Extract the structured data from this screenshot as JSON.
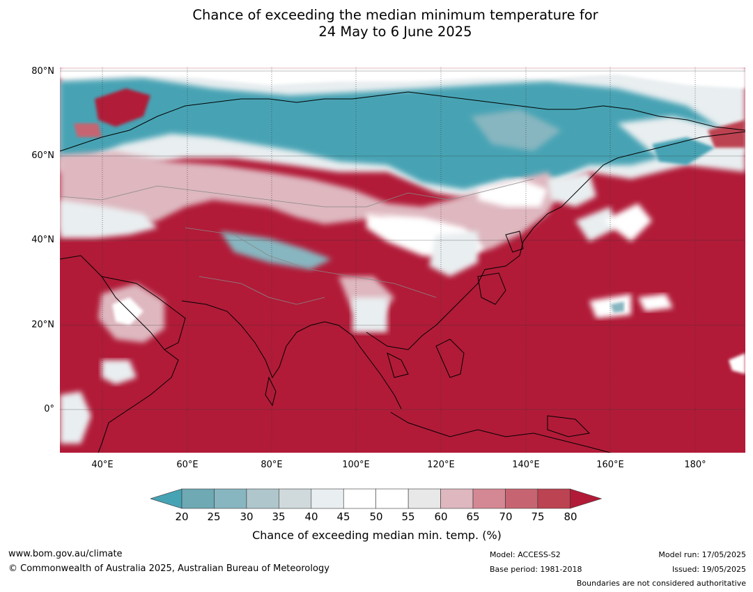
{
  "title": {
    "line1": "Chance of exceeding the median minimum temperature for",
    "line2": "24 May to 6 June 2025"
  },
  "map": {
    "latitude_labels": [
      "80°N",
      "60°N",
      "40°N",
      "20°N",
      "0°"
    ],
    "longitude_labels": [
      "40°E",
      "60°E",
      "80°E",
      "100°E",
      "120°E",
      "140°E",
      "160°E",
      "180°"
    ],
    "colors": {
      "ocean_high": "#b11b38",
      "low_band": "#46a3b4",
      "mid_white": "#ffffff"
    }
  },
  "colorbar": {
    "ticks": [
      "20",
      "25",
      "30",
      "35",
      "40",
      "45",
      "50",
      "55",
      "60",
      "65",
      "70",
      "75",
      "80"
    ],
    "colors": [
      "#46a3b4",
      "#6ea9b4",
      "#87b6c0",
      "#aec6cc",
      "#d0d9dc",
      "#e9eef0",
      "#ffffff",
      "#ffffff",
      "#e8e8e8",
      "#deb7bf",
      "#d48893",
      "#c66571",
      "#bc4351",
      "#b11b38"
    ],
    "title": "Chance of exceeding median min. temp. (%)"
  },
  "footer": {
    "website": "www.bom.gov.au/climate",
    "copyright": "© Commonwealth of Australia 2025, Australian Bureau of Meteorology",
    "model": "Model: ACCESS-S2",
    "base_period": "Base period: 1981-2018",
    "model_run": "Model run: 17/05/2025",
    "issued": "Issued: 19/05/2025",
    "boundaries": "Boundaries are not considered authoritative"
  }
}
